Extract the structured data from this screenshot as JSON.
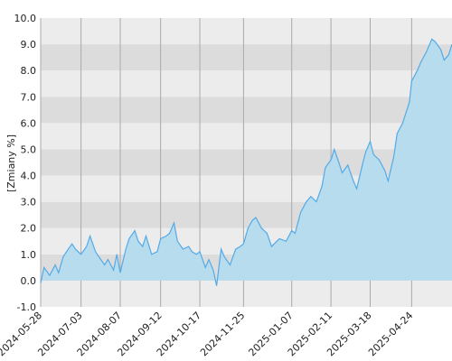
{
  "chart_data": {
    "type": "area",
    "ylabel": "[Zmiany %]",
    "ylim": [
      -1.0,
      10.0
    ],
    "yticks": [
      "-1.0",
      "0.0",
      "1.0",
      "2.0",
      "3.0",
      "4.0",
      "5.0",
      "6.0",
      "7.0",
      "8.0",
      "9.0",
      "10.0"
    ],
    "xlim": [
      "2024-05-28",
      "2025-05-30"
    ],
    "xticks": [
      "2024-05-28",
      "2024-07-03",
      "2024-08-07",
      "2024-09-12",
      "2024-10-17",
      "2024-11-25",
      "2025-01-07",
      "2025-02-11",
      "2025-03-18",
      "2025-04-24"
    ],
    "grid": true,
    "legend": "none",
    "colors": {
      "band_dark": "#dcdcdc",
      "band_light": "#ececec",
      "fill": "#b6dcee",
      "line": "#55aae6",
      "gridline": "#aaaaaa"
    },
    "series": [
      {
        "x": [
          "2024-05-28",
          "2024-05-31",
          "2024-06-05",
          "2024-06-10",
          "2024-06-13",
          "2024-06-17",
          "2024-06-20",
          "2024-06-25",
          "2024-06-28",
          "2024-07-03",
          "2024-07-08",
          "2024-07-11",
          "2024-07-16",
          "2024-07-19",
          "2024-07-24",
          "2024-07-27",
          "2024-08-01",
          "2024-08-04",
          "2024-08-07",
          "2024-08-12",
          "2024-08-15",
          "2024-08-20",
          "2024-08-23",
          "2024-08-27",
          "2024-08-30",
          "2024-09-04",
          "2024-09-09",
          "2024-09-12",
          "2024-09-17",
          "2024-09-20",
          "2024-09-24",
          "2024-09-27",
          "2024-10-02",
          "2024-10-07",
          "2024-10-10",
          "2024-10-14",
          "2024-10-17",
          "2024-10-22",
          "2024-10-25",
          "2024-10-29",
          "2024-11-01",
          "2024-11-05",
          "2024-11-08",
          "2024-11-13",
          "2024-11-18",
          "2024-11-22",
          "2024-11-25",
          "2024-11-29",
          "2024-12-03",
          "2024-12-06",
          "2024-12-11",
          "2024-12-16",
          "2024-12-20",
          "2024-12-27",
          "2025-01-02",
          "2025-01-07",
          "2025-01-10",
          "2025-01-15",
          "2025-01-20",
          "2025-01-24",
          "2025-01-29",
          "2025-02-03",
          "2025-02-06",
          "2025-02-11",
          "2025-02-14",
          "2025-02-18",
          "2025-02-21",
          "2025-02-26",
          "2025-03-03",
          "2025-03-06",
          "2025-03-11",
          "2025-03-14",
          "2025-03-18",
          "2025-03-21",
          "2025-03-26",
          "2025-03-31",
          "2025-04-03",
          "2025-04-08",
          "2025-04-11",
          "2025-04-16",
          "2025-04-22",
          "2025-04-24",
          "2025-04-29",
          "2025-05-02",
          "2025-05-07",
          "2025-05-12",
          "2025-05-15",
          "2025-05-20",
          "2025-05-23",
          "2025-05-27",
          "2025-05-30"
        ],
        "values": [
          -0.1,
          0.5,
          0.2,
          0.6,
          0.3,
          0.9,
          1.1,
          1.4,
          1.2,
          1.0,
          1.3,
          1.7,
          1.1,
          0.9,
          0.6,
          0.8,
          0.4,
          1.0,
          0.3,
          1.2,
          1.6,
          1.9,
          1.5,
          1.3,
          1.7,
          1.0,
          1.1,
          1.6,
          1.7,
          1.8,
          2.2,
          1.5,
          1.2,
          1.3,
          1.1,
          1.0,
          1.1,
          0.5,
          0.8,
          0.4,
          -0.2,
          1.2,
          0.9,
          0.6,
          1.2,
          1.3,
          1.4,
          2.0,
          2.3,
          2.4,
          2.0,
          1.8,
          1.3,
          1.6,
          1.5,
          1.9,
          1.8,
          2.6,
          3.0,
          3.2,
          3.0,
          3.6,
          4.3,
          4.6,
          5.0,
          4.5,
          4.1,
          4.4,
          3.8,
          3.5,
          4.4,
          4.9,
          5.3,
          4.8,
          4.6,
          4.2,
          3.8,
          4.7,
          5.6,
          6.0,
          6.8,
          7.6,
          8.0,
          8.3,
          8.7,
          9.2,
          9.1,
          8.8,
          8.4,
          8.6,
          9.0
        ]
      }
    ]
  }
}
